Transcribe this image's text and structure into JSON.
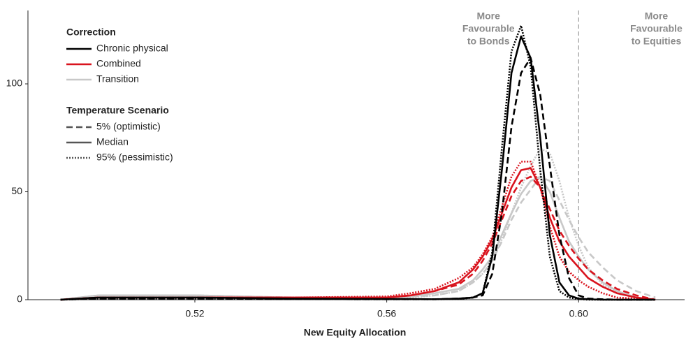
{
  "chart_data": {
    "type": "line",
    "x_label": "New Equity Allocation",
    "x": [
      0.492,
      0.5,
      0.52,
      0.54,
      0.56,
      0.565,
      0.57,
      0.575,
      0.578,
      0.58,
      0.582,
      0.584,
      0.586,
      0.588,
      0.59,
      0.592,
      0.594,
      0.596,
      0.598,
      0.6,
      0.602,
      0.605,
      0.608,
      0.612,
      0.616
    ],
    "xlim": [
      0.4852,
      0.6221
    ],
    "ylim": [
      0,
      134
    ],
    "xticks": [
      0.52,
      0.56,
      {
        "value": 0.6,
        "label": "0.60"
      }
    ],
    "yticks": [
      0,
      50,
      100
    ],
    "vline": 0.6,
    "annotations": [
      {
        "lines": [
          "More",
          "Favourable",
          "to Bonds"
        ],
        "x": 0.5812
      },
      {
        "lines": [
          "More",
          "Favourable",
          "to Equities"
        ],
        "x": 0.6162
      }
    ],
    "legend": {
      "correction": {
        "title": "Correction",
        "entries": [
          {
            "name": "Chronic physical",
            "color": "#000000"
          },
          {
            "name": "Combined",
            "color": "#d9141e"
          },
          {
            "name": "Transition",
            "color": "#c8c8c8"
          }
        ]
      },
      "scenario": {
        "title": "Temperature Scenario",
        "entries": [
          {
            "name": "5% (optimistic)",
            "dash": "dashed"
          },
          {
            "name": "Median",
            "dash": "solid"
          },
          {
            "name": "95% (pessimistic)",
            "dash": "dotted"
          }
        ]
      }
    },
    "series": [
      {
        "color": "#c8c8c8",
        "dash": "dashed",
        "values": [
          0,
          2,
          2,
          1,
          1,
          1.5,
          2,
          4,
          8,
          12,
          18,
          27,
          37,
          45,
          51,
          57,
          55,
          46,
          37,
          29,
          22,
          15,
          9,
          4,
          1
        ]
      },
      {
        "color": "#c8c8c8",
        "dash": "solid",
        "values": [
          0,
          2,
          2,
          1,
          1,
          1.5,
          3,
          5,
          9,
          14,
          20,
          30,
          40,
          49,
          55,
          57,
          50,
          38,
          27,
          20,
          14,
          8,
          4,
          1,
          0
        ]
      },
      {
        "color": "#c8c8c8",
        "dash": "dotted",
        "values": [
          0,
          2,
          2,
          1,
          1,
          1,
          2,
          4,
          8,
          12,
          18,
          28,
          40,
          52,
          62,
          70,
          68,
          55,
          38,
          25,
          15,
          7,
          3,
          1,
          0
        ]
      },
      {
        "color": "#d9141e",
        "dash": "dashed",
        "values": [
          0,
          1,
          1,
          1,
          1,
          2,
          4,
          7,
          12,
          18,
          26,
          37,
          48,
          55,
          57,
          52,
          42,
          32,
          25,
          19,
          14,
          9,
          5,
          2,
          0
        ]
      },
      {
        "color": "#d9141e",
        "dash": "solid",
        "values": [
          0,
          1,
          1,
          1,
          1,
          2,
          4,
          8,
          14,
          20,
          28,
          40,
          52,
          60,
          61,
          52,
          38,
          27,
          20,
          15,
          10,
          6,
          3,
          1,
          0
        ]
      },
      {
        "color": "#d9141e",
        "dash": "dotted",
        "values": [
          0,
          1,
          1,
          1,
          1.5,
          3,
          5,
          10,
          15,
          21,
          29,
          43,
          57,
          64,
          64,
          52,
          34,
          20,
          13,
          9,
          6,
          3,
          1,
          0.5,
          0
        ]
      },
      {
        "color": "#000000",
        "dash": "dashed",
        "values": [
          0,
          0.5,
          0.5,
          0.3,
          0.2,
          0.2,
          0.2,
          0.5,
          1,
          2,
          12,
          40,
          80,
          105,
          112,
          95,
          62,
          30,
          10,
          2,
          0.5,
          0.2,
          0,
          0,
          0
        ]
      },
      {
        "color": "#000000",
        "dash": "solid",
        "values": [
          0,
          1,
          1,
          0.5,
          0.3,
          0.3,
          0.2,
          0.5,
          1,
          3,
          20,
          60,
          105,
          122,
          112,
          75,
          30,
          8,
          2,
          0.5,
          0.2,
          0,
          0,
          0,
          0
        ]
      },
      {
        "color": "#000000",
        "dash": "dotted",
        "values": [
          0,
          0.5,
          0.5,
          0.3,
          0.2,
          0.2,
          0.2,
          0.3,
          1,
          3,
          22,
          70,
          115,
          127,
          108,
          60,
          20,
          4,
          1,
          0.3,
          0,
          0,
          0,
          0,
          0
        ]
      }
    ]
  }
}
